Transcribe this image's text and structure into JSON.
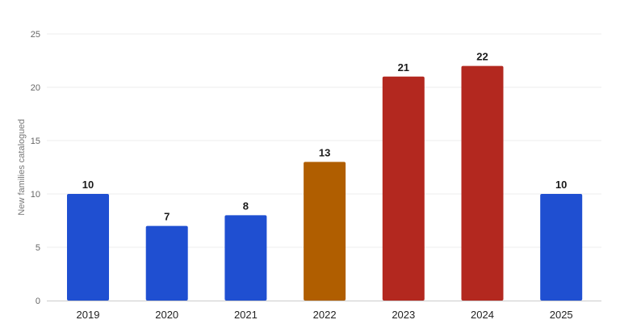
{
  "chart_data": {
    "type": "bar",
    "title": "",
    "xlabel": "",
    "ylabel": "New families catalogued",
    "ylim": [
      0,
      25
    ],
    "yticks": [
      0,
      5,
      10,
      15,
      20,
      25
    ],
    "grid": true,
    "categories": [
      "2019",
      "2020",
      "2021",
      "2022",
      "2023",
      "2024",
      "2025"
    ],
    "values": [
      10,
      7,
      8,
      13,
      21,
      22,
      10
    ],
    "colors": [
      "#1f4fd1",
      "#1f4fd1",
      "#1f4fd1",
      "#b05e00",
      "#b3281f",
      "#b3281f",
      "#1f4fd1"
    ],
    "gridline_color": "#eeeeee",
    "axis_color": "#cccccc"
  }
}
